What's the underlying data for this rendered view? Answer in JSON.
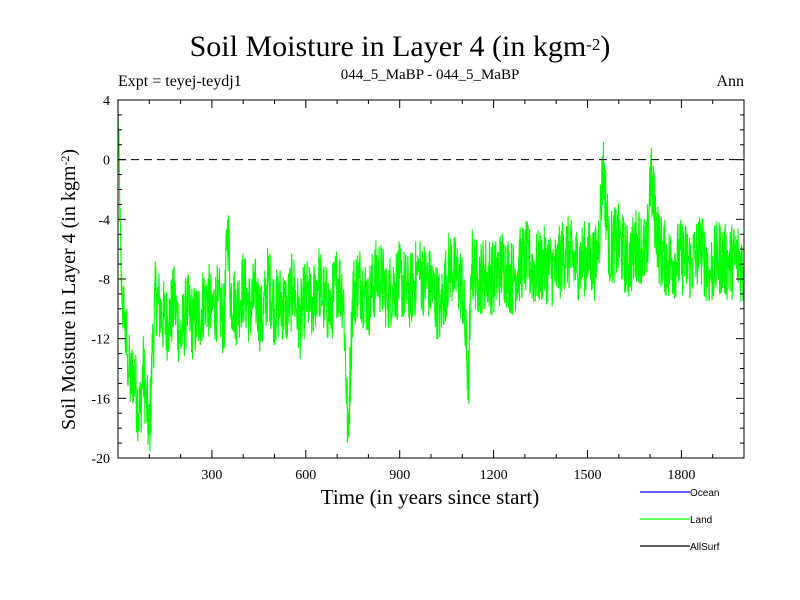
{
  "chart_data": {
    "type": "line",
    "title": "Soil Moisture in Layer 4 (in kgm",
    "title_sup": "-2",
    "title_close": ")",
    "expt": "Expt = teyej-teydj1",
    "subtitle": "044_5_MaBP - 044_5_MaBP",
    "period": "Ann",
    "xlabel": "Time (in years since start)",
    "ylabel": "Soil Moisture in Layer 4 (in kgm",
    "ylabel_sup": "-2",
    "ylabel_close": ")",
    "xlim": [
      0,
      2000
    ],
    "ylim": [
      -20,
      4
    ],
    "xticks": [
      300,
      600,
      900,
      1200,
      1500,
      1800
    ],
    "xtick_labels": [
      "300",
      "600",
      "900",
      "1200",
      "1500",
      "1800"
    ],
    "yticks": [
      4,
      0,
      -4,
      -8,
      -12,
      -16,
      -20
    ],
    "ytick_labels": [
      "4",
      "0",
      "-4",
      "-8",
      "-12",
      "-16",
      "-20"
    ],
    "zero_line": 0,
    "legend_position": "bottom-right",
    "series": [
      {
        "name": "Ocean",
        "color": "#0000ff",
        "values": []
      },
      {
        "name": "Land",
        "color": "#00ff00",
        "x": [
          0,
          10,
          20,
          30,
          40,
          50,
          60,
          70,
          80,
          90,
          100,
          110,
          120,
          140,
          160,
          180,
          200,
          220,
          240,
          260,
          280,
          300,
          320,
          340,
          350,
          360,
          380,
          400,
          420,
          440,
          460,
          480,
          500,
          520,
          540,
          560,
          580,
          600,
          620,
          640,
          660,
          680,
          700,
          720,
          735,
          750,
          770,
          800,
          830,
          860,
          900,
          930,
          960,
          1000,
          1030,
          1060,
          1100,
          1120,
          1130,
          1150,
          1180,
          1200,
          1230,
          1260,
          1300,
          1330,
          1360,
          1400,
          1430,
          1460,
          1500,
          1530,
          1550,
          1570,
          1600,
          1630,
          1660,
          1690,
          1700,
          1730,
          1760,
          1800,
          1830,
          1860,
          1890,
          1920,
          1950,
          1980,
          2000
        ],
        "values": [
          4.0,
          -8.0,
          -11.0,
          -13.0,
          -15.0,
          -14.0,
          -16.0,
          -17.0,
          -14.0,
          -16.0,
          -18.5,
          -13.0,
          -9.0,
          -10.5,
          -11.0,
          -9.5,
          -12.0,
          -10.0,
          -11.0,
          -10.5,
          -9.0,
          -10.0,
          -9.5,
          -11.0,
          -4.0,
          -9.0,
          -10.0,
          -8.5,
          -10.0,
          -9.0,
          -11.0,
          -8.0,
          -10.0,
          -9.5,
          -10.0,
          -8.5,
          -11.0,
          -9.0,
          -10.0,
          -8.0,
          -9.5,
          -10.0,
          -8.0,
          -9.0,
          -18.5,
          -9.0,
          -8.0,
          -9.5,
          -7.5,
          -9.0,
          -8.0,
          -9.0,
          -7.5,
          -8.5,
          -10.0,
          -7.0,
          -8.5,
          -15.0,
          -7.0,
          -8.0,
          -7.5,
          -8.0,
          -7.0,
          -8.0,
          -6.5,
          -7.5,
          -7.0,
          -7.5,
          -6.0,
          -7.0,
          -6.5,
          -7.0,
          -0.5,
          -6.0,
          -5.5,
          -7.0,
          -5.5,
          -6.5,
          -1.0,
          -6.0,
          -7.0,
          -6.5,
          -7.0,
          -6.0,
          -7.5,
          -6.5,
          -7.0,
          -6.5,
          -7.5
        ]
      },
      {
        "name": "AllSurf",
        "color": "#000000",
        "values": []
      }
    ]
  }
}
